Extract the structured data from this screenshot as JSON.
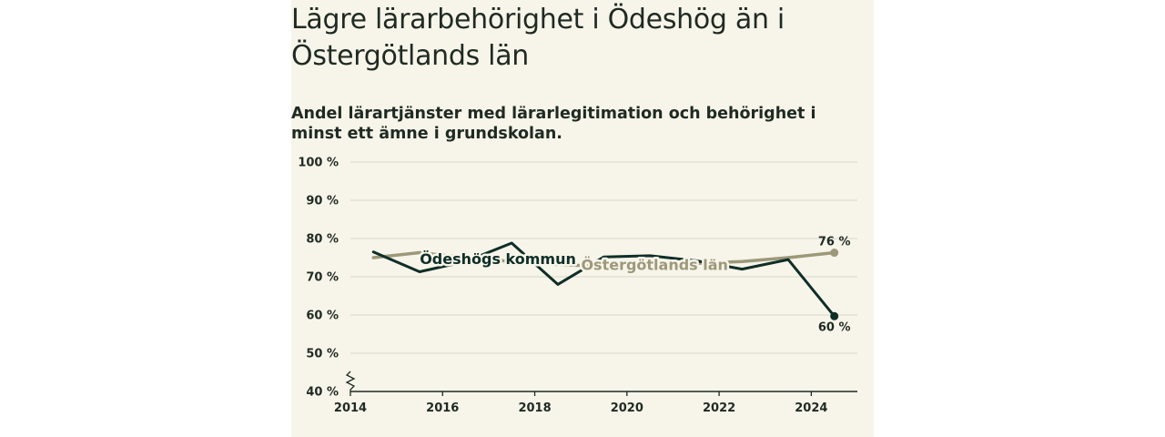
{
  "header": {
    "title": "Lägre lärarbehörighet i Ödeshög än i Östergötlands län",
    "subtitle": "Andel lärartjänster med lärarlegitimation och behörighet i minst ett ämne i grundskolan."
  },
  "colors": {
    "background": "#f7f5ea",
    "odeshog": "#0f2e27",
    "ostergotland": "#9c987a",
    "grid": "#d9d6c8",
    "axis": "#1f2a22"
  },
  "chart_data": {
    "type": "line",
    "title": "Lägre lärarbehörighet i Ödeshög än i Östergötlands län",
    "subtitle": "Andel lärartjänster med lärarlegitimation och behörighet i minst ett ämne i grundskolan.",
    "xlabel": "",
    "ylabel": "",
    "xlim": [
      2014,
      2025
    ],
    "ylim": [
      40,
      100
    ],
    "y_axis_break": true,
    "grid": true,
    "x_ticks": [
      2014,
      2016,
      2018,
      2020,
      2022,
      2024
    ],
    "y_ticks": [
      {
        "value": 40,
        "label": "40 %"
      },
      {
        "value": 50,
        "label": "50 %"
      },
      {
        "value": 60,
        "label": "60 %"
      },
      {
        "value": 70,
        "label": "70 %"
      },
      {
        "value": 80,
        "label": "80 %"
      },
      {
        "value": 90,
        "label": "90 %"
      },
      {
        "value": 100,
        "label": "100 %"
      }
    ],
    "x": [
      2014.5,
      2015.5,
      2016.5,
      2017.5,
      2018.5,
      2019.5,
      2020.5,
      2021.5,
      2022.5,
      2023.5,
      2024.5
    ],
    "series": [
      {
        "name": "Ödeshögs kommun",
        "key": "odeshog",
        "values": [
          76.5,
          71.3,
          74.0,
          78.8,
          68.0,
          75.2,
          75.5,
          74.2,
          72.0,
          74.5,
          59.7
        ],
        "end_label": "60 %"
      },
      {
        "name": "Östergötlands län",
        "key": "ostergotland",
        "values": [
          75.0,
          76.3,
          75.0,
          74.0,
          73.2,
          72.7,
          72.8,
          73.5,
          74.0,
          75.0,
          76.3
        ],
        "end_label": "76 %"
      }
    ]
  }
}
